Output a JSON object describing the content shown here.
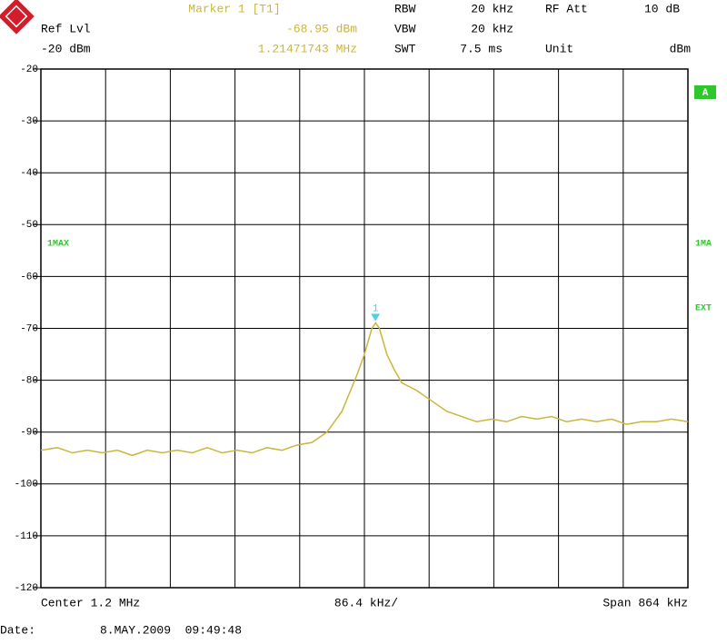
{
  "chart_data": {
    "type": "line",
    "header": {
      "marker_title": "Marker 1 [T1]",
      "marker_level": "-68.95 dBm",
      "marker_freq": "1.21471743 MHz",
      "ref_lvl_label": "Ref Lvl",
      "ref_lvl": "-20 dBm",
      "rbw_label": "RBW",
      "rbw": "20 kHz",
      "vbw_label": "VBW",
      "vbw": "20 kHz",
      "swt_label": "SWT",
      "swt": "7.5 ms",
      "rf_att_label": "RF Att",
      "rf_att": "10 dB",
      "unit_label": "Unit",
      "unit": "dBm"
    },
    "side_labels": {
      "a": "A",
      "trace_right": "1MA",
      "ext": "EXT"
    },
    "footer": {
      "center": "Center 1.2 MHz",
      "per_div": "86.4 kHz/",
      "span": "Span 864 kHz",
      "date_label": "Date:",
      "date": "8.MAY.2009  09:49:48"
    },
    "x": [
      0.768,
      0.79,
      0.81,
      0.83,
      0.85,
      0.87,
      0.89,
      0.91,
      0.93,
      0.95,
      0.97,
      0.99,
      1.01,
      1.03,
      1.05,
      1.07,
      1.09,
      1.11,
      1.13,
      1.15,
      1.17,
      1.19,
      1.2,
      1.21,
      1.215,
      1.22,
      1.23,
      1.24,
      1.25,
      1.27,
      1.29,
      1.31,
      1.33,
      1.35,
      1.37,
      1.39,
      1.41,
      1.43,
      1.45,
      1.47,
      1.49,
      1.51,
      1.53,
      1.55,
      1.57,
      1.59,
      1.61,
      1.632
    ],
    "series": [
      {
        "name": "1MAX",
        "color": "#c9b63c",
        "values": [
          -93.5,
          -93,
          -94,
          -93.5,
          -94,
          -93.5,
          -94.5,
          -93.5,
          -94,
          -93.5,
          -94,
          -93,
          -94,
          -93.5,
          -94,
          -93,
          -93.5,
          -92.5,
          -92,
          -90,
          -86,
          -79,
          -75,
          -70,
          -68.95,
          -70,
          -75,
          -78,
          -80.5,
          -82,
          -84,
          -86,
          -87,
          -88,
          -87.5,
          -88,
          -87,
          -87.5,
          -87,
          -88,
          -87.5,
          -88,
          -87.5,
          -88.5,
          -88,
          -88,
          -87.5,
          -88
        ]
      }
    ],
    "marker": {
      "label": "1",
      "x": 1.21471743,
      "y": -68.95,
      "color": "#4fd0e0"
    },
    "xlim": [
      0.768,
      1.632
    ],
    "ylim": [
      -120,
      -20
    ],
    "yticks": [
      -20,
      -30,
      -40,
      -50,
      -60,
      -70,
      -80,
      -90,
      -100,
      -110,
      -120
    ],
    "grid": true
  }
}
